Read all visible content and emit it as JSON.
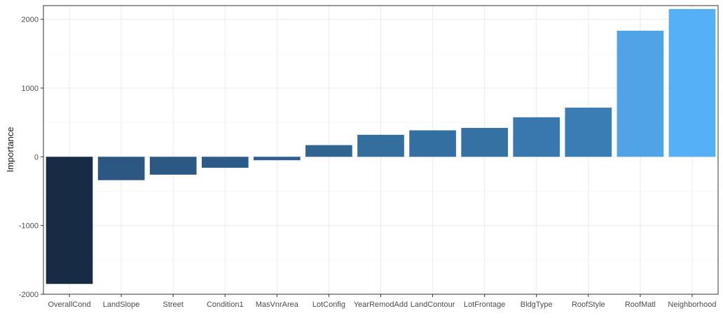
{
  "chart_data": {
    "type": "bar",
    "title": "",
    "xlabel": "",
    "ylabel": "Importance",
    "ylim": [
      -2000,
      2200
    ],
    "yticks": [
      -2000,
      -1000,
      0,
      1000,
      2000
    ],
    "yticklabels": [
      "-2000",
      "-1000",
      "0",
      "1000",
      "2000"
    ],
    "grid": true,
    "legend": "none",
    "categories": [
      "OverallCond",
      "LandSlope",
      "Street",
      "Condition1",
      "MasVnrArea",
      "LotConfig",
      "YearRemodAdd",
      "LandContour",
      "LotFrontage",
      "BldgType",
      "RoofStyle",
      "RoofMatl",
      "Neighborhood"
    ],
    "values": [
      -1850,
      -340,
      -260,
      -160,
      -50,
      170,
      320,
      385,
      420,
      575,
      715,
      1835,
      2150
    ],
    "colors": [
      "#172b44",
      "#2b5782",
      "#2b5984",
      "#2c5b87",
      "#2d5e8c",
      "#306591",
      "#346e9f",
      "#346fa1",
      "#3571a3",
      "#3878af",
      "#3a7db5",
      "#4fa3e6",
      "#55b0f7"
    ]
  }
}
